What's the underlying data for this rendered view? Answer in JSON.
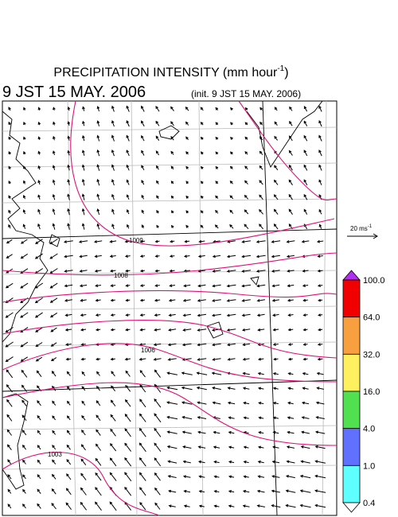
{
  "header": {
    "title": "PRECIPITATION INTENSITY (mm hour",
    "title_sup": "-1",
    "title_end": ")",
    "valid_time": "9 JST 15 MAY. 2006",
    "init_time": "(init. 9 JST 15 MAY. 2006)"
  },
  "vector_legend": {
    "label": "20 ms",
    "sup": "-1"
  },
  "colorbar": {
    "labels": [
      "100.0",
      "64.0",
      "32.0",
      "16.0",
      "4.0",
      "1.0",
      "0.4"
    ],
    "colors": [
      "#b030f0",
      "#f00000",
      "#f8a040",
      "#fff060",
      "#50e050",
      "#6070ff",
      "#60ffff",
      "#ffffff"
    ]
  },
  "isobars": [
    {
      "label": "1009"
    },
    {
      "label": "1008"
    },
    {
      "label": "1006"
    },
    {
      "label": "1003"
    }
  ]
}
